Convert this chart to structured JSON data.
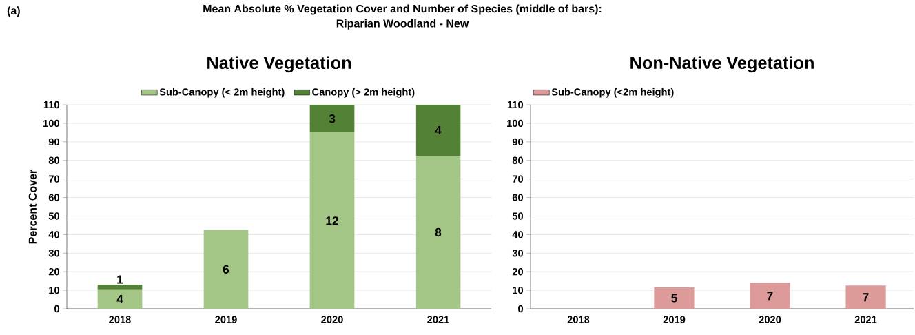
{
  "chart_data": [
    {
      "type": "bar",
      "title": "Native Vegetation",
      "ylabel": "Percent Cover",
      "stacked": true,
      "categories": [
        "2018",
        "2019",
        "2020",
        "2021"
      ],
      "annotations": [
        "(a)",
        "Mean Absolute % Vegetation Cover and Number of Species (middle of bars):",
        "Riparian Woodland - New",
        {
          "text": "4",
          "x": "2018",
          "y": 10.5
        },
        {
          "text": "1",
          "x": "2018",
          "y": 13
        },
        {
          "text": "6",
          "x": "2019",
          "y": 42.5
        },
        "12",
        {
          "text": "3",
          "x": "2020",
          "y": 110
        },
        "8",
        {
          "text": "4",
          "x": "2021",
          "y": 110
        }
      ],
      "series": [
        {
          "name": "Sub-Canopy (< 2m height)",
          "color": "#a3c585",
          "values": [
            10.5,
            42.5,
            95,
            82.5
          ]
        },
        {
          "name": "Canopy (> 2m height)",
          "color": "#538135",
          "values": [
            2.5,
            null,
            15,
            27.5
          ]
        }
      ],
      "ylim": [
        0,
        110
      ],
      "yticks": [
        0,
        10,
        20,
        30,
        40,
        50,
        60,
        70,
        80,
        90,
        100,
        110
      ],
      "grid": "y",
      "legend": "top"
    },
    {
      "type": "bar",
      "title": "Non-Native Vegetation",
      "categories": [
        "2018",
        "2019",
        "2020",
        "2021"
      ],
      "annotations": [
        {
          "text": "5",
          "x": "2019",
          "y": 11.5
        },
        {
          "text": "7",
          "x": "2020",
          "y": 14
        },
        {
          "text": "7",
          "x": "2021",
          "y": 12.5
        }
      ],
      "series": [
        {
          "name": "Sub-Canopy (<2m height)",
          "color": "#dc9a99",
          "values": [
            null,
            11.5,
            14,
            12.5
          ]
        }
      ],
      "ylim": [
        0,
        110
      ],
      "yticks": [
        0,
        10,
        20,
        30,
        40,
        50,
        60,
        70,
        80,
        90,
        100,
        110
      ],
      "grid": "y",
      "legend": "top left"
    }
  ]
}
